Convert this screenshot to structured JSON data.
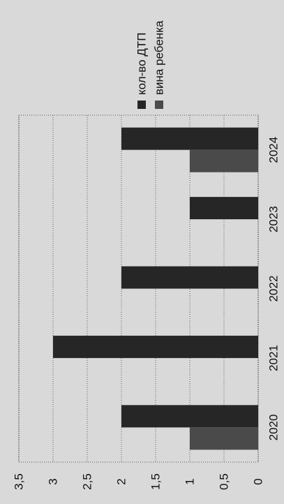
{
  "chart_data": {
    "type": "bar",
    "orientation": "rotated-90-ccw",
    "title": "",
    "xlabel": "",
    "ylabel": "",
    "categories": [
      "2020",
      "2021",
      "2022",
      "2023",
      "2024"
    ],
    "series": [
      {
        "name": "кол-во ДТП",
        "values": [
          2,
          3,
          2,
          1,
          2
        ],
        "color": "#262626"
      },
      {
        "name": "вина ребенка",
        "values": [
          1,
          0,
          0,
          0,
          1
        ],
        "color": "#4a4a4a"
      }
    ],
    "yticks": [
      "0",
      "0,5",
      "1",
      "1,5",
      "2",
      "2,5",
      "3",
      "3,5"
    ],
    "ylim": [
      0,
      3.5
    ],
    "grid": true,
    "legend_position": "right"
  }
}
